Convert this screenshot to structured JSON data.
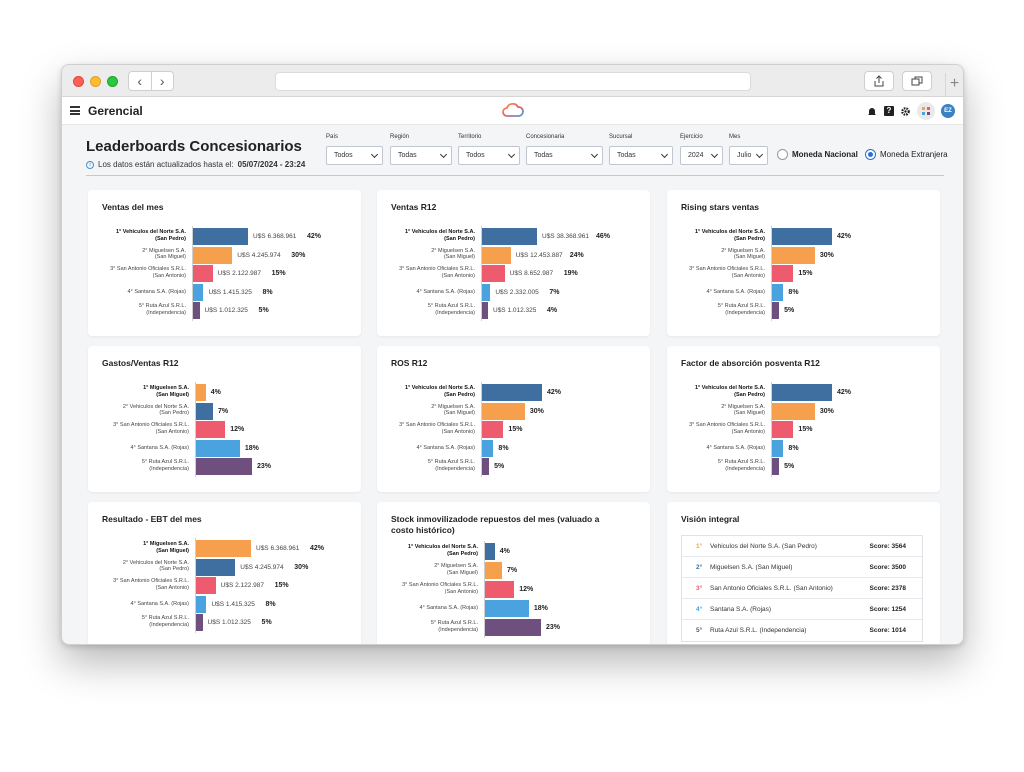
{
  "app": {
    "title": "Gerencial"
  },
  "page": {
    "title": "Leaderboards Concesionarios",
    "updated_prefix": "Los datos están actualizados hasta el:",
    "updated_value": "05/07/2024 - 23:24"
  },
  "filters": [
    {
      "label": "País",
      "value": "Todos"
    },
    {
      "label": "Región",
      "value": "Todas"
    },
    {
      "label": "Territorio",
      "value": "Todos"
    },
    {
      "label": "Concesionaria",
      "value": "Todas"
    },
    {
      "label": "Sucursal",
      "value": "Todas"
    },
    {
      "label": "Ejercicio",
      "value": "2024"
    },
    {
      "label": "Mes",
      "value": "Julio"
    }
  ],
  "currency": {
    "national": "Moneda Nacional",
    "foreign": "Moneda Extranjera",
    "selected": "foreign"
  },
  "colors": {
    "blue": "#3f6fa0",
    "orange": "#f6a04d",
    "red": "#ee5a6e",
    "lightblue": "#4aa3de",
    "purple": "#6e4f7e"
  },
  "header_icons": [
    "bell-icon",
    "help-icon",
    "gear-icon",
    "apps-icon"
  ],
  "avatar": "EZ",
  "cards": [
    {
      "title": "Ventas del mes",
      "rows": [
        {
          "label1": "1° Vehiculos del Norte S.A.",
          "label2": "(San Pedro)",
          "color": "blue",
          "value": "U$S 6.368.961",
          "pct": "42%",
          "share": 42
        },
        {
          "label1": "2° Miguelsen S.A.",
          "label2": "(San Miguel)",
          "color": "orange",
          "value": "U$S 4.245.974",
          "pct": "30%",
          "share": 30
        },
        {
          "label1": "3° San Antonio Oficiales S.R.L.",
          "label2": "(San Antonio)",
          "color": "red",
          "value": "U$S 2.122.987",
          "pct": "15%",
          "share": 15
        },
        {
          "label1": "4° Santana S.A. (Rojas)",
          "label2": "",
          "color": "lightblue",
          "value": "U$S 1.415.325",
          "pct": "8%",
          "share": 8
        },
        {
          "label1": "5° Ruta Azul S.R.L.",
          "label2": "(Independencia)",
          "color": "purple",
          "value": "U$S 1.012.325",
          "pct": "5%",
          "share": 5
        }
      ]
    },
    {
      "title": "Ventas R12",
      "rows": [
        {
          "label1": "1° Vehiculos del Norte S.A.",
          "label2": "(San Pedro)",
          "color": "blue",
          "value": "U$S 38.368.961",
          "pct": "46%",
          "share": 46
        },
        {
          "label1": "2° Miguelsen S.A.",
          "label2": "(San Miguel)",
          "color": "orange",
          "value": "U$S 12.453.887",
          "pct": "24%",
          "share": 24
        },
        {
          "label1": "3° San Antonio Oficiales S.R.L.",
          "label2": "(San Antonio)",
          "color": "red",
          "value": "U$S 8.652.987",
          "pct": "19%",
          "share": 19
        },
        {
          "label1": "4° Santana S.A. (Rojas)",
          "label2": "",
          "color": "lightblue",
          "value": "U$S 2.332.005",
          "pct": "7%",
          "share": 7
        },
        {
          "label1": "5° Ruta Azul S.R.L.",
          "label2": "(Independencia)",
          "color": "purple",
          "value": "U$S 1.012.325",
          "pct": "4%",
          "share": 4
        }
      ]
    },
    {
      "title": "Rising stars ventas",
      "rows": [
        {
          "label1": "1° Vehiculos del Norte S.A.",
          "label2": "(San Pedro)",
          "color": "blue",
          "value": "",
          "pct": "42%",
          "share": 42
        },
        {
          "label1": "2° Miguelsen S.A.",
          "label2": "(San Miguel)",
          "color": "orange",
          "value": "",
          "pct": "30%",
          "share": 30
        },
        {
          "label1": "3° San Antonio Oficiales S.R.L.",
          "label2": "(San Antonio)",
          "color": "red",
          "value": "",
          "pct": "15%",
          "share": 15
        },
        {
          "label1": "4° Santana S.A. (Rojas)",
          "label2": "",
          "color": "lightblue",
          "value": "",
          "pct": "8%",
          "share": 8
        },
        {
          "label1": "5° Ruta Azul S.R.L.",
          "label2": "(Independencia)",
          "color": "purple",
          "value": "",
          "pct": "5%",
          "share": 5
        }
      ]
    },
    {
      "title": "Gastos/Ventas R12",
      "rows": [
        {
          "label1": "1° Miguelsen S.A.",
          "label2": "(San Miguel)",
          "color": "orange",
          "value": "",
          "pct": "4%",
          "share": 4
        },
        {
          "label1": "2° Vehiculos del Norte S.A.",
          "label2": "(San Pedro)",
          "color": "blue",
          "value": "",
          "pct": "7%",
          "share": 7
        },
        {
          "label1": "3° San Antonio Oficiales S.R.L.",
          "label2": "(San Antonio)",
          "color": "red",
          "value": "",
          "pct": "12%",
          "share": 12
        },
        {
          "label1": "4° Santana S.A. (Rojas)",
          "label2": "",
          "color": "lightblue",
          "value": "",
          "pct": "18%",
          "share": 18
        },
        {
          "label1": "5° Ruta Azul S.R.L.",
          "label2": "(Independencia)",
          "color": "purple",
          "value": "",
          "pct": "23%",
          "share": 23
        }
      ]
    },
    {
      "title": "ROS R12",
      "rows": [
        {
          "label1": "1° Vehiculos del Norte S.A.",
          "label2": "(San Pedro)",
          "color": "blue",
          "value": "",
          "pct": "42%",
          "share": 42
        },
        {
          "label1": "2° Miguelsen S.A.",
          "label2": "(San Miguel)",
          "color": "orange",
          "value": "",
          "pct": "30%",
          "share": 30
        },
        {
          "label1": "3° San Antonio Oficiales S.R.L.",
          "label2": "(San Antonio)",
          "color": "red",
          "value": "",
          "pct": "15%",
          "share": 15
        },
        {
          "label1": "4° Santana S.A. (Rojas)",
          "label2": "",
          "color": "lightblue",
          "value": "",
          "pct": "8%",
          "share": 8
        },
        {
          "label1": "5° Ruta Azul S.R.L.",
          "label2": "(Independencia)",
          "color": "purple",
          "value": "",
          "pct": "5%",
          "share": 5
        }
      ]
    },
    {
      "title": "Factor de absorción posventa R12",
      "rows": [
        {
          "label1": "1° Vehiculos del Norte S.A.",
          "label2": "(San Pedro)",
          "color": "blue",
          "value": "",
          "pct": "42%",
          "share": 42
        },
        {
          "label1": "2° Miguelsen S.A.",
          "label2": "(San Miguel)",
          "color": "orange",
          "value": "",
          "pct": "30%",
          "share": 30
        },
        {
          "label1": "3° San Antonio Oficiales S.R.L.",
          "label2": "(San Antonio)",
          "color": "red",
          "value": "",
          "pct": "15%",
          "share": 15
        },
        {
          "label1": "4° Santana S.A. (Rojas)",
          "label2": "",
          "color": "lightblue",
          "value": "",
          "pct": "8%",
          "share": 8
        },
        {
          "label1": "5° Ruta Azul S.R.L.",
          "label2": "(Independencia)",
          "color": "purple",
          "value": "",
          "pct": "5%",
          "share": 5
        }
      ]
    },
    {
      "title": "Resultado - EBT del mes",
      "rows": [
        {
          "label1": "1° Miguelsen S.A.",
          "label2": "(San Miguel)",
          "color": "orange",
          "value": "U$S 6.368.961",
          "pct": "42%",
          "share": 42
        },
        {
          "label1": "2° Vehiculos del Norte S.A.",
          "label2": "(San Pedro)",
          "color": "blue",
          "value": "U$S 4.245.974",
          "pct": "30%",
          "share": 30
        },
        {
          "label1": "3° San Antonio Oficiales S.R.L.",
          "label2": "(San Antonio)",
          "color": "red",
          "value": "U$S 2.122.987",
          "pct": "15%",
          "share": 15
        },
        {
          "label1": "4° Santana S.A. (Rojas)",
          "label2": "",
          "color": "lightblue",
          "value": "U$S 1.415.325",
          "pct": "8%",
          "share": 8
        },
        {
          "label1": "5° Ruta Azul S.R.L.",
          "label2": "(Independencia)",
          "color": "purple",
          "value": "U$S 1.012.325",
          "pct": "5%",
          "share": 5
        }
      ]
    },
    {
      "title": "Stock inmovilizadode repuestos del mes (valuado a costo histórico)",
      "rows": [
        {
          "label1": "1° Vehiculos del Norte S.A.",
          "label2": "(San Pedro)",
          "color": "blue",
          "value": "",
          "pct": "4%",
          "share": 4
        },
        {
          "label1": "2° Miguelsen S.A.",
          "label2": "(San Miguel)",
          "color": "orange",
          "value": "",
          "pct": "7%",
          "share": 7
        },
        {
          "label1": "3° San Antonio Oficiales S.R.L.",
          "label2": "(San Antonio)",
          "color": "red",
          "value": "",
          "pct": "12%",
          "share": 12
        },
        {
          "label1": "4° Santana S.A. (Rojas)",
          "label2": "",
          "color": "lightblue",
          "value": "",
          "pct": "18%",
          "share": 18
        },
        {
          "label1": "5° Ruta Azul S.R.L.",
          "label2": "(Independencia)",
          "color": "purple",
          "value": "",
          "pct": "23%",
          "share": 23
        }
      ]
    }
  ],
  "vision": {
    "title": "Visión integral",
    "rows": [
      {
        "rank": "1°",
        "rank_color": "#f6a04d",
        "name": "Vehiculos del Norte S.A. (San Pedro)",
        "score": "Score: 3564"
      },
      {
        "rank": "2°",
        "rank_color": "#3f6fa0",
        "name": "Miguelsen S.A. (San Miguel)",
        "score": "Score: 3500"
      },
      {
        "rank": "3°",
        "rank_color": "#ee5a6e",
        "name": "San Antonio Oficiales S.R.L. (San Antonio)",
        "score": "Score: 2378"
      },
      {
        "rank": "4°",
        "rank_color": "#4aa3de",
        "name": "Santana S.A. (Rojas)",
        "score": "Score: 1254"
      },
      {
        "rank": "5°",
        "rank_color": "#6e4f7e",
        "name": "Ruta Azul S.R.L. (Independencia)",
        "score": "Score: 1014"
      }
    ]
  }
}
